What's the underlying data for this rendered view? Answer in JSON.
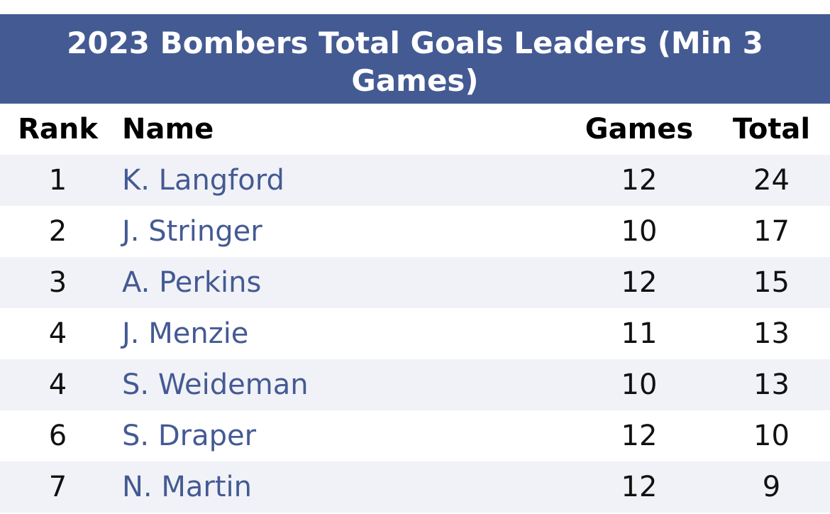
{
  "title": "2023 Bombers Total Goals Leaders (Min 3 Games)",
  "title_line1": "2023 Bombers Total Goals Leaders (Min 3",
  "title_line2": "Games)",
  "columns": {
    "rank": "Rank",
    "name": "Name",
    "games": "Games",
    "total": "Total"
  },
  "rows": [
    {
      "rank": "1",
      "name": "K. Langford",
      "games": "12",
      "total": "24"
    },
    {
      "rank": "2",
      "name": "J. Stringer",
      "games": "10",
      "total": "17"
    },
    {
      "rank": "3",
      "name": "A. Perkins",
      "games": "12",
      "total": "15"
    },
    {
      "rank": "4",
      "name": "J. Menzie",
      "games": "11",
      "total": "13"
    },
    {
      "rank": "4",
      "name": "S. Weideman",
      "games": "10",
      "total": "13"
    },
    {
      "rank": "6",
      "name": "S. Draper",
      "games": "12",
      "total": "10"
    },
    {
      "rank": "7",
      "name": "N. Martin",
      "games": "12",
      "total": "9"
    }
  ],
  "colors": {
    "header_background": "#445a93",
    "link": "#445a93",
    "stripe": "#f1f2f7"
  }
}
